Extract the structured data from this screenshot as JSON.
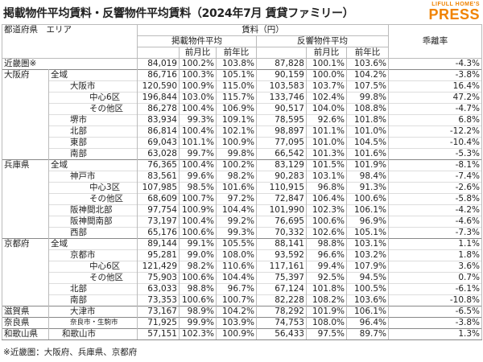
{
  "title": "掲載物件平均賃料・反響物件平均賃料（2024年7月 賃貸ファミリー）",
  "logo": {
    "brand": "LIFULL HOME'S",
    "name": "PRESS"
  },
  "header": {
    "region": "都道府県　エリア",
    "rent": "賃料（円）",
    "listed": "掲載物件平均",
    "inquired": "反響物件平均",
    "mom": "前月比",
    "yoy": "前年比",
    "ratio": "乖離率"
  },
  "table": {
    "rows": [
      {
        "pref": "近畿圏※",
        "values": [
          "84,019",
          "100.2%",
          "103.8%",
          "87,828",
          "100.1%",
          "103.6%",
          "-4.3%"
        ]
      },
      {
        "pref": "大阪府",
        "area": "全域",
        "values": [
          "86,716",
          "100.3%",
          "105.1%",
          "90,159",
          "100.0%",
          "104.2%",
          "-3.8%"
        ]
      },
      {
        "area": "大阪市",
        "values": [
          "120,590",
          "100.9%",
          "115.0%",
          "103,583",
          "103.7%",
          "107.5%",
          "16.4%"
        ]
      },
      {
        "area": "中心6区",
        "values": [
          "196,844",
          "103.0%",
          "115.7%",
          "133,746",
          "102.4%",
          "99.8%",
          "47.2%"
        ]
      },
      {
        "area": "その他区",
        "values": [
          "86,278",
          "100.4%",
          "106.9%",
          "90,517",
          "104.0%",
          "108.8%",
          "-4.7%"
        ]
      },
      {
        "area": "堺市",
        "values": [
          "83,934",
          "99.3%",
          "109.1%",
          "78,595",
          "92.6%",
          "101.8%",
          "6.8%"
        ]
      },
      {
        "area": "北部",
        "values": [
          "86,814",
          "100.4%",
          "102.1%",
          "98,897",
          "101.1%",
          "101.0%",
          "-12.2%"
        ]
      },
      {
        "area": "東部",
        "values": [
          "69,043",
          "101.1%",
          "100.9%",
          "77,095",
          "101.0%",
          "104.5%",
          "-10.4%"
        ]
      },
      {
        "area": "南部",
        "values": [
          "63,028",
          "99.7%",
          "99.8%",
          "66,542",
          "101.3%",
          "101.6%",
          "-5.3%"
        ]
      },
      {
        "pref": "兵庫県",
        "area": "全域",
        "values": [
          "76,365",
          "100.4%",
          "100.2%",
          "83,129",
          "101.5%",
          "101.9%",
          "-8.1%"
        ]
      },
      {
        "area": "神戸市",
        "values": [
          "83,561",
          "99.6%",
          "98.2%",
          "90,283",
          "103.1%",
          "98.4%",
          "-7.4%"
        ]
      },
      {
        "area": "中心3区",
        "values": [
          "107,985",
          "98.5%",
          "101.6%",
          "110,915",
          "96.8%",
          "91.3%",
          "-2.6%"
        ]
      },
      {
        "area": "その他区",
        "values": [
          "68,609",
          "100.7%",
          "97.2%",
          "72,847",
          "106.4%",
          "100.6%",
          "-5.8%"
        ]
      },
      {
        "area": "阪神間北部",
        "values": [
          "97,754",
          "100.9%",
          "104.4%",
          "101,990",
          "102.3%",
          "106.1%",
          "-4.2%"
        ]
      },
      {
        "area": "阪神間南部",
        "values": [
          "73,197",
          "100.4%",
          "99.2%",
          "76,695",
          "100.6%",
          "96.9%",
          "-4.6%"
        ]
      },
      {
        "area": "西部",
        "values": [
          "65,176",
          "100.6%",
          "99.3%",
          "70,332",
          "102.6%",
          "105.1%",
          "-7.3%"
        ]
      },
      {
        "pref": "京都府",
        "area": "全域",
        "values": [
          "89,144",
          "99.1%",
          "105.5%",
          "88,141",
          "98.8%",
          "103.1%",
          "1.1%"
        ]
      },
      {
        "area": "京都市",
        "values": [
          "95,281",
          "99.0%",
          "108.0%",
          "93,592",
          "96.6%",
          "103.2%",
          "1.8%"
        ]
      },
      {
        "area": "中心6区",
        "values": [
          "121,429",
          "98.2%",
          "110.6%",
          "117,161",
          "99.4%",
          "107.9%",
          "3.6%"
        ]
      },
      {
        "area": "その他区",
        "values": [
          "75,903",
          "100.6%",
          "104.4%",
          "75,397",
          "92.5%",
          "94.5%",
          "0.7%"
        ]
      },
      {
        "area": "北部",
        "values": [
          "63,033",
          "98.8%",
          "96.7%",
          "67,124",
          "101.8%",
          "100.5%",
          "-6.1%"
        ]
      },
      {
        "area": "南部",
        "values": [
          "73,353",
          "100.6%",
          "100.7%",
          "82,228",
          "108.2%",
          "103.6%",
          "-10.8%"
        ]
      },
      {
        "pref": "滋賀県",
        "area": "大津市",
        "values": [
          "73,167",
          "98.9%",
          "104.2%",
          "78,292",
          "101.9%",
          "106.1%",
          "-6.5%"
        ]
      },
      {
        "pref": "奈良県",
        "area": "奈良市・生駒市",
        "values": [
          "71,925",
          "99.9%",
          "103.9%",
          "74,753",
          "108.0%",
          "96.4%",
          "-3.8%"
        ]
      },
      {
        "pref": "和歌山県",
        "area": "和歌山市",
        "values": [
          "57,151",
          "102.3%",
          "100.9%",
          "56,433",
          "97.5%",
          "89.7%",
          "1.3%"
        ]
      }
    ]
  },
  "footnote": "※近畿圏：大阪府、兵庫県、京都府"
}
